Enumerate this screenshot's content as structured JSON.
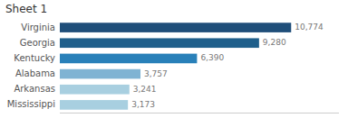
{
  "chart_data": {
    "type": "bar",
    "title": "Sheet 1",
    "orientation": "horizontal",
    "categories": [
      "Virginia",
      "Georgia",
      "Kentucky",
      "Alabama",
      "Arkansas",
      "Mississippi"
    ],
    "values": [
      10774,
      9280,
      6390,
      3757,
      3241,
      3173
    ],
    "value_labels": [
      "10,774",
      "9,280",
      "6,390",
      "3,757",
      "3,241",
      "3,173"
    ],
    "colors": [
      "#1f4e79",
      "#1f5f8b",
      "#2980b9",
      "#7fb3d3",
      "#a8cfe0",
      "#a8cfe0"
    ],
    "xlim": [
      0,
      13000
    ],
    "data_labels": true,
    "tick_labels": false,
    "grid": false
  }
}
